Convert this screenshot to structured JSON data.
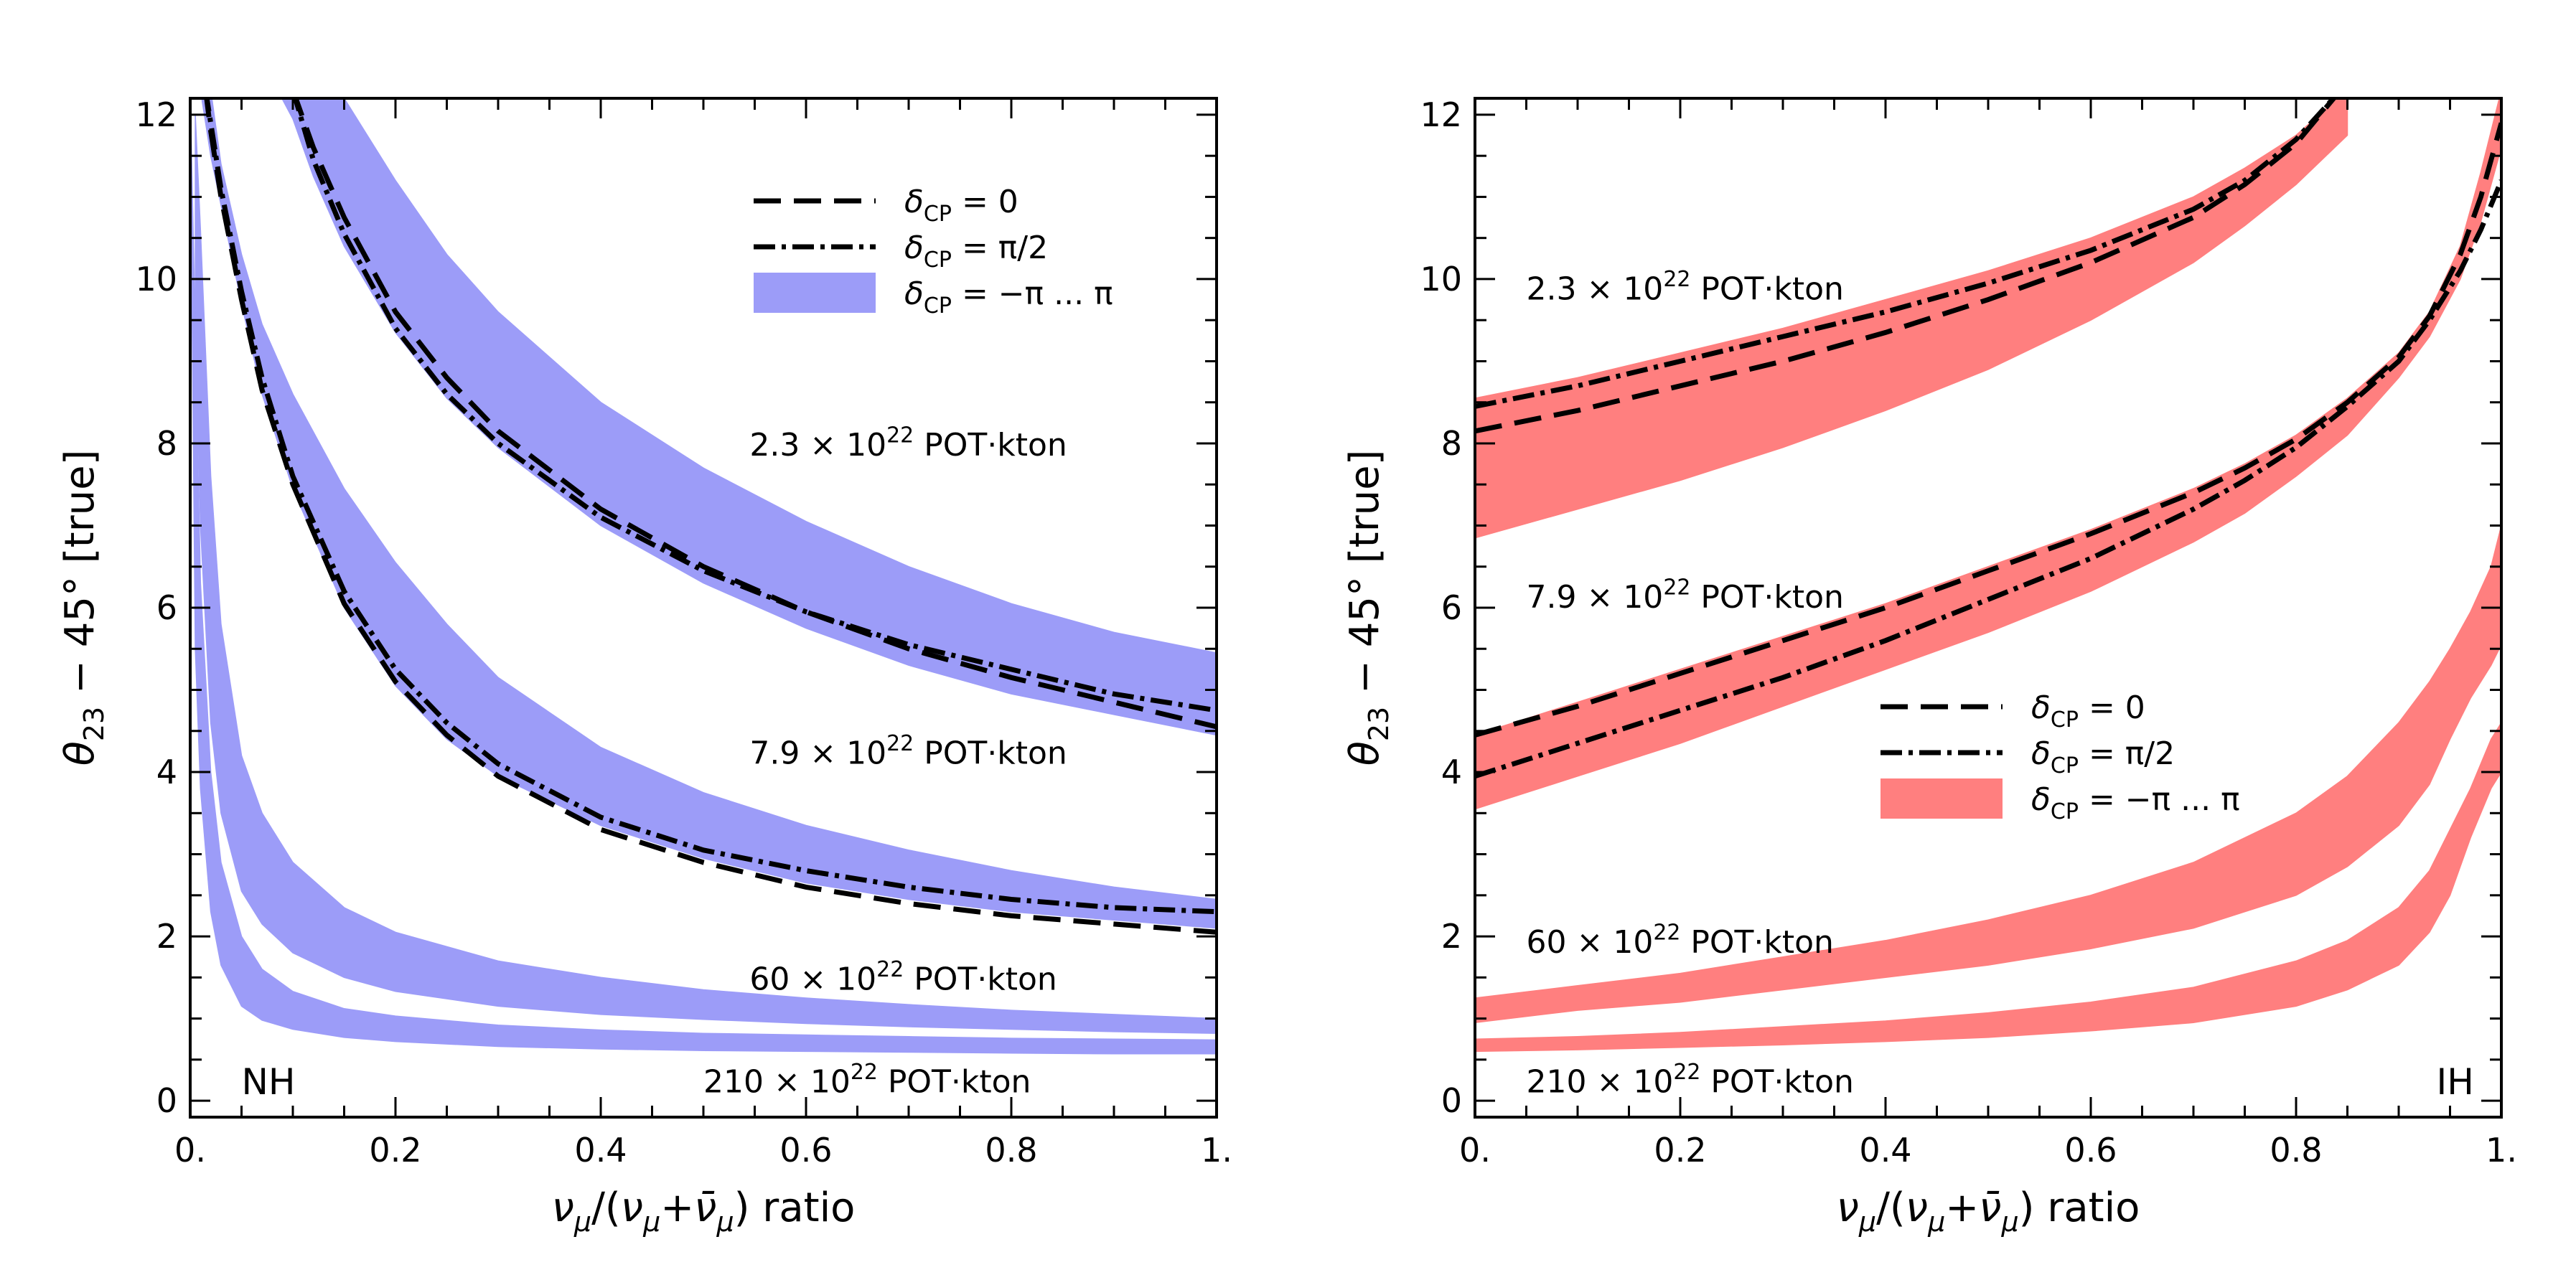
{
  "chart_data": [
    {
      "type": "area",
      "panel": "NH",
      "title": "",
      "xlabel": "ν_μ/(ν_μ+ν̄_μ)  ratio",
      "ylabel": "θ_23 − 45°  [true]",
      "xlim": [
        0,
        1
      ],
      "ylim": [
        -0.2,
        12.2
      ],
      "xticks": [
        "0.",
        "0.2",
        "0.4",
        "0.6",
        "0.8",
        "1."
      ],
      "yticks": [
        "0",
        "2",
        "4",
        "6",
        "8",
        "10",
        "12"
      ],
      "panel_label": "NH",
      "color": "#9c9cf8",
      "legend": {
        "position": "top-right",
        "entries": [
          {
            "style": "dashed",
            "label_main": "δ",
            "label_sub": "CP",
            "label_rest": " = 0"
          },
          {
            "style": "dashdot",
            "label_main": "δ",
            "label_sub": "CP",
            "label_rest": " = π/2"
          },
          {
            "style": "band",
            "label_main": "δ",
            "label_sub": "CP",
            "label_rest": " = −π ... π"
          }
        ]
      },
      "exposures": [
        {
          "label_pre": "2.3 × 10",
          "label_exp": "22",
          "label_post": " POT·kton",
          "label_at": [
            0.545,
            7.85
          ]
        },
        {
          "label_pre": "7.9 × 10",
          "label_exp": "22",
          "label_post": " POT·kton",
          "label_at": [
            0.545,
            4.1
          ]
        },
        {
          "label_pre": "60 × 10",
          "label_exp": "22",
          "label_post": " POT·kton",
          "label_at": [
            0.545,
            1.35
          ]
        },
        {
          "label_pre": "210 × 10",
          "label_exp": "22",
          "label_post": " POT·kton",
          "label_at": [
            0.5,
            0.1
          ]
        }
      ],
      "series": [
        {
          "name": "2.3e22 band",
          "x": [
            0.085,
            0.1,
            0.12,
            0.15,
            0.2,
            0.25,
            0.3,
            0.4,
            0.5,
            0.6,
            0.7,
            0.8,
            0.9,
            1.0
          ],
          "lower": [
            12.3,
            11.95,
            11.25,
            10.4,
            9.35,
            8.55,
            7.95,
            7.0,
            6.3,
            5.75,
            5.3,
            4.95,
            4.7,
            4.45
          ],
          "upper": [
            12.3,
            12.3,
            12.3,
            12.2,
            11.2,
            10.3,
            9.6,
            8.5,
            7.7,
            7.05,
            6.5,
            6.05,
            5.7,
            5.45
          ]
        },
        {
          "name": "2.3e22 dCP=0",
          "style": "dashed",
          "x": [
            0.1,
            0.12,
            0.15,
            0.2,
            0.25,
            0.3,
            0.4,
            0.5,
            0.6,
            0.7,
            0.8,
            0.9,
            1.0
          ],
          "y": [
            12.3,
            11.6,
            10.75,
            9.6,
            8.8,
            8.15,
            7.2,
            6.5,
            5.95,
            5.5,
            5.15,
            4.85,
            4.55
          ]
        },
        {
          "name": "2.3e22 dCP=pi/2",
          "style": "dashdot",
          "x": [
            0.1,
            0.12,
            0.15,
            0.2,
            0.25,
            0.3,
            0.4,
            0.5,
            0.6,
            0.7,
            0.8,
            0.9,
            1.0
          ],
          "y": [
            12.3,
            11.45,
            10.55,
            9.4,
            8.6,
            8.0,
            7.1,
            6.45,
            5.95,
            5.55,
            5.25,
            4.95,
            4.75
          ]
        },
        {
          "name": "7.9e22 band",
          "x": [
            0.01,
            0.02,
            0.03,
            0.05,
            0.07,
            0.1,
            0.15,
            0.2,
            0.25,
            0.3,
            0.4,
            0.5,
            0.6,
            0.7,
            0.8,
            0.9,
            1.0
          ],
          "lower": [
            12.3,
            11.5,
            10.9,
            9.7,
            8.6,
            7.45,
            6.0,
            5.05,
            4.4,
            3.95,
            3.35,
            2.95,
            2.65,
            2.45,
            2.3,
            2.2,
            2.1
          ],
          "upper": [
            12.3,
            12.3,
            11.4,
            10.3,
            9.45,
            8.6,
            7.45,
            6.55,
            5.8,
            5.15,
            4.3,
            3.75,
            3.35,
            3.05,
            2.8,
            2.6,
            2.45
          ]
        },
        {
          "name": "7.9e22 dCP=0",
          "style": "dashed",
          "x": [
            0.015,
            0.02,
            0.03,
            0.05,
            0.07,
            0.1,
            0.15,
            0.2,
            0.25,
            0.3,
            0.4,
            0.5,
            0.6,
            0.7,
            0.8,
            0.9,
            1.0
          ],
          "y": [
            12.3,
            11.8,
            11.0,
            9.75,
            8.65,
            7.5,
            6.05,
            5.1,
            4.45,
            3.95,
            3.3,
            2.9,
            2.6,
            2.4,
            2.25,
            2.15,
            2.05
          ]
        },
        {
          "name": "7.9e22 dCP=pi/2",
          "style": "dashdot",
          "x": [
            0.015,
            0.02,
            0.03,
            0.05,
            0.07,
            0.1,
            0.15,
            0.2,
            0.25,
            0.3,
            0.4,
            0.5,
            0.6,
            0.7,
            0.8,
            0.9,
            1.0
          ],
          "y": [
            12.3,
            11.9,
            11.1,
            9.85,
            8.8,
            7.6,
            6.2,
            5.25,
            4.6,
            4.1,
            3.45,
            3.05,
            2.8,
            2.6,
            2.45,
            2.35,
            2.3
          ]
        },
        {
          "name": "60e22 band",
          "x": [
            0.005,
            0.01,
            0.02,
            0.03,
            0.05,
            0.07,
            0.1,
            0.15,
            0.2,
            0.3,
            0.4,
            0.5,
            0.6,
            0.7,
            0.8,
            0.9,
            1.0
          ],
          "lower": [
            9.5,
            7.0,
            4.6,
            3.5,
            2.55,
            2.15,
            1.8,
            1.5,
            1.33,
            1.15,
            1.05,
            0.99,
            0.94,
            0.9,
            0.87,
            0.84,
            0.82
          ],
          "upper": [
            12.0,
            10.6,
            7.6,
            5.8,
            4.2,
            3.5,
            2.9,
            2.35,
            2.05,
            1.7,
            1.5,
            1.35,
            1.25,
            1.17,
            1.1,
            1.05,
            1.0
          ]
        },
        {
          "name": "210e22 band",
          "x": [
            0.0,
            0.005,
            0.01,
            0.02,
            0.03,
            0.05,
            0.07,
            0.1,
            0.15,
            0.2,
            0.3,
            0.4,
            0.5,
            0.6,
            0.7,
            0.8,
            0.9,
            1.0
          ],
          "lower": [
            12.0,
            5.5,
            3.8,
            2.3,
            1.65,
            1.15,
            0.98,
            0.87,
            0.77,
            0.72,
            0.66,
            0.63,
            0.61,
            0.6,
            0.59,
            0.58,
            0.57,
            0.57
          ],
          "upper": [
            12.3,
            9.3,
            6.3,
            4.0,
            2.9,
            2.0,
            1.6,
            1.33,
            1.12,
            1.03,
            0.92,
            0.86,
            0.82,
            0.8,
            0.78,
            0.76,
            0.75,
            0.74
          ]
        }
      ]
    },
    {
      "type": "area",
      "panel": "IH",
      "title": "",
      "xlabel": "ν_μ/(ν_μ+ν̄_μ)  ratio",
      "ylabel": "θ_23 − 45°  [true]",
      "xlim": [
        0,
        1
      ],
      "ylim": [
        -0.2,
        12.2
      ],
      "xticks": [
        "0.",
        "0.2",
        "0.4",
        "0.6",
        "0.8",
        "1."
      ],
      "yticks": [
        "0",
        "2",
        "4",
        "6",
        "8",
        "10",
        "12"
      ],
      "panel_label": "IH",
      "color": "#ff7f7f",
      "legend": {
        "position": "center-right",
        "entries": [
          {
            "style": "dashed",
            "label_main": "δ",
            "label_sub": "CP",
            "label_rest": " = 0"
          },
          {
            "style": "dashdot",
            "label_main": "δ",
            "label_sub": "CP",
            "label_rest": " = π/2"
          },
          {
            "style": "band",
            "label_main": "δ",
            "label_sub": "CP",
            "label_rest": " = −π ... π"
          }
        ]
      },
      "exposures": [
        {
          "label_pre": "2.3 × 10",
          "label_exp": "22",
          "label_post": " POT·kton",
          "label_at": [
            0.05,
            9.75
          ]
        },
        {
          "label_pre": "7.9 × 10",
          "label_exp": "22",
          "label_post": " POT·kton",
          "label_at": [
            0.05,
            6.0
          ]
        },
        {
          "label_pre": "60 × 10",
          "label_exp": "22",
          "label_post": " POT·kton",
          "label_at": [
            0.05,
            1.8
          ]
        },
        {
          "label_pre": "210 × 10",
          "label_exp": "22",
          "label_post": " POT·kton",
          "label_at": [
            0.05,
            0.1
          ]
        }
      ],
      "series": [
        {
          "name": "2.3e22 band",
          "x": [
            0.0,
            0.1,
            0.2,
            0.3,
            0.4,
            0.5,
            0.6,
            0.7,
            0.75,
            0.8,
            0.85
          ],
          "lower": [
            6.85,
            7.2,
            7.55,
            7.95,
            8.4,
            8.9,
            9.5,
            10.2,
            10.65,
            11.15,
            11.75
          ],
          "upper": [
            8.55,
            8.8,
            9.1,
            9.4,
            9.75,
            10.1,
            10.5,
            11.0,
            11.35,
            11.75,
            12.3
          ]
        },
        {
          "name": "2.3e22 dCP=0",
          "style": "dashed",
          "x": [
            0.0,
            0.1,
            0.2,
            0.3,
            0.4,
            0.5,
            0.6,
            0.7,
            0.75,
            0.8,
            0.84
          ],
          "y": [
            8.15,
            8.4,
            8.7,
            9.0,
            9.35,
            9.75,
            10.2,
            10.75,
            11.15,
            11.65,
            12.25
          ]
        },
        {
          "name": "2.3e22 dCP=pi/2",
          "style": "dashdot",
          "x": [
            0.0,
            0.1,
            0.2,
            0.3,
            0.4,
            0.5,
            0.6,
            0.7,
            0.75,
            0.8,
            0.84
          ],
          "y": [
            8.45,
            8.7,
            9.0,
            9.3,
            9.6,
            9.95,
            10.35,
            10.85,
            11.2,
            11.7,
            12.25
          ]
        },
        {
          "name": "7.9e22 band",
          "x": [
            0.0,
            0.1,
            0.2,
            0.3,
            0.4,
            0.5,
            0.6,
            0.7,
            0.75,
            0.8,
            0.85,
            0.9,
            0.93,
            0.96,
            0.98,
            1.0
          ],
          "lower": [
            3.55,
            3.95,
            4.35,
            4.8,
            5.25,
            5.7,
            6.2,
            6.8,
            7.15,
            7.6,
            8.1,
            8.8,
            9.3,
            10.0,
            10.7,
            11.6
          ],
          "upper": [
            4.45,
            4.85,
            5.25,
            5.65,
            6.05,
            6.5,
            6.95,
            7.45,
            7.75,
            8.1,
            8.55,
            9.1,
            9.6,
            10.4,
            11.3,
            12.3
          ]
        },
        {
          "name": "7.9e22 dCP=0",
          "style": "dashed",
          "x": [
            0.0,
            0.1,
            0.2,
            0.3,
            0.4,
            0.5,
            0.6,
            0.7,
            0.75,
            0.8,
            0.85,
            0.9,
            0.93,
            0.96,
            0.98,
            1.0
          ],
          "y": [
            4.45,
            4.8,
            5.2,
            5.6,
            6.0,
            6.45,
            6.9,
            7.4,
            7.7,
            8.05,
            8.5,
            9.05,
            9.55,
            10.3,
            11.0,
            11.9
          ]
        },
        {
          "name": "7.9e22 dCP=pi/2",
          "style": "dashdot",
          "x": [
            0.0,
            0.1,
            0.2,
            0.3,
            0.4,
            0.5,
            0.6,
            0.7,
            0.75,
            0.8,
            0.85,
            0.9,
            0.93,
            0.96,
            0.98,
            1.0
          ],
          "y": [
            3.95,
            4.35,
            4.75,
            5.15,
            5.6,
            6.1,
            6.6,
            7.2,
            7.55,
            7.95,
            8.45,
            9.0,
            9.5,
            10.1,
            10.6,
            11.2
          ]
        },
        {
          "name": "60e22 band",
          "x": [
            0.0,
            0.1,
            0.2,
            0.3,
            0.4,
            0.5,
            0.6,
            0.7,
            0.8,
            0.85,
            0.9,
            0.93,
            0.95,
            0.97,
            0.99,
            1.0
          ],
          "lower": [
            0.95,
            1.1,
            1.2,
            1.35,
            1.5,
            1.65,
            1.85,
            2.1,
            2.5,
            2.85,
            3.35,
            3.85,
            4.4,
            4.9,
            5.3,
            5.55
          ],
          "upper": [
            1.25,
            1.4,
            1.55,
            1.75,
            1.95,
            2.2,
            2.5,
            2.9,
            3.5,
            3.95,
            4.6,
            5.1,
            5.5,
            5.95,
            6.5,
            7.0
          ]
        },
        {
          "name": "210e22 band",
          "x": [
            0.0,
            0.1,
            0.2,
            0.3,
            0.4,
            0.5,
            0.6,
            0.7,
            0.8,
            0.85,
            0.9,
            0.93,
            0.95,
            0.97,
            0.99,
            1.0
          ],
          "lower": [
            0.6,
            0.62,
            0.65,
            0.68,
            0.72,
            0.77,
            0.85,
            0.95,
            1.15,
            1.35,
            1.65,
            2.05,
            2.5,
            3.2,
            3.8,
            4.0
          ],
          "upper": [
            0.75,
            0.78,
            0.83,
            0.9,
            0.97,
            1.07,
            1.2,
            1.38,
            1.7,
            1.95,
            2.35,
            2.8,
            3.3,
            3.8,
            4.4,
            4.6
          ]
        }
      ]
    }
  ]
}
